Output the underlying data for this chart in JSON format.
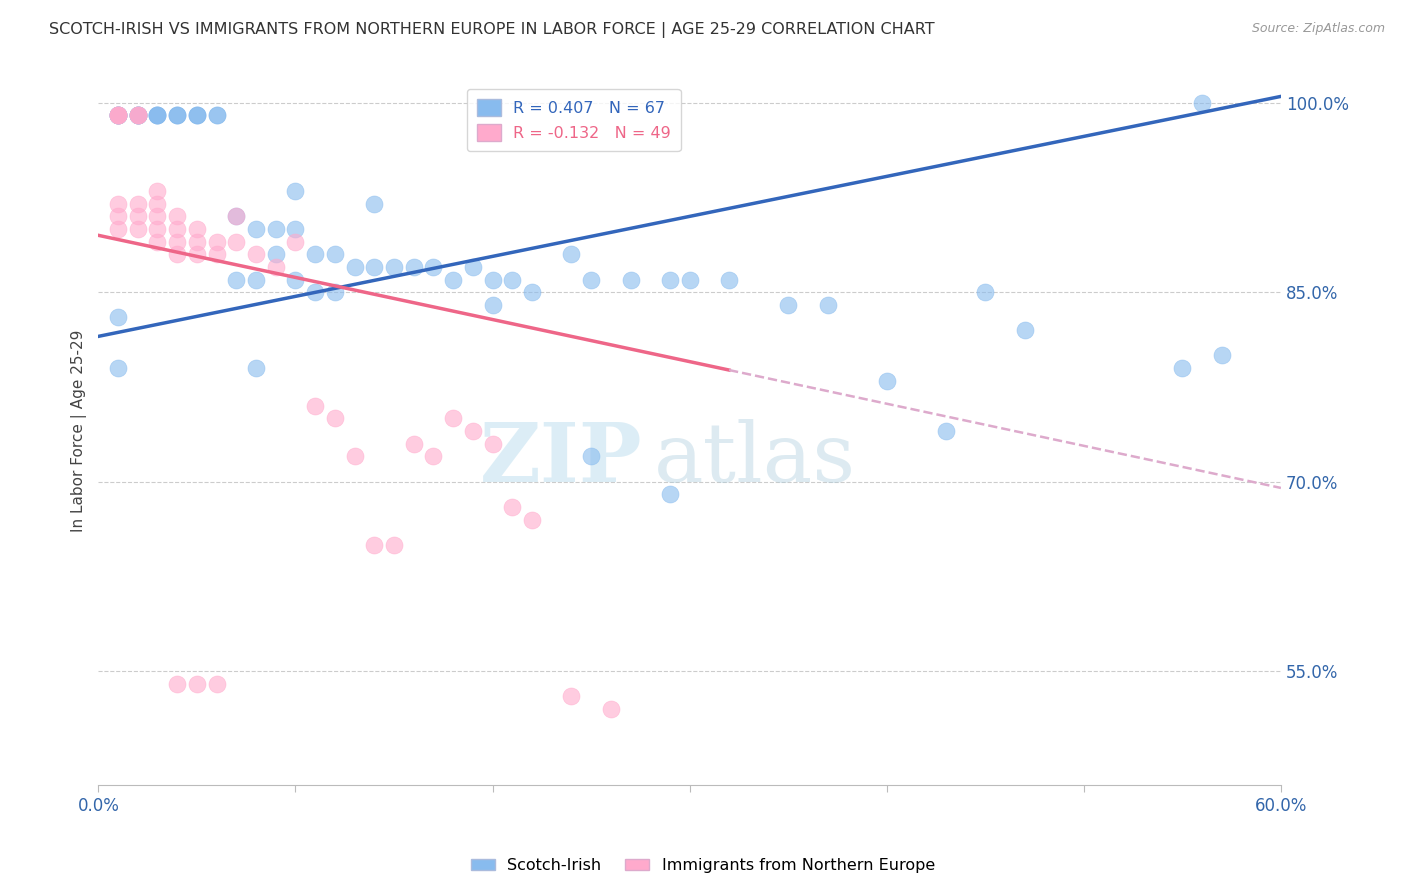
{
  "title": "SCOTCH-IRISH VS IMMIGRANTS FROM NORTHERN EUROPE IN LABOR FORCE | AGE 25-29 CORRELATION CHART",
  "source": "Source: ZipAtlas.com",
  "ylabel": "In Labor Force | Age 25-29",
  "xlim": [
    0.0,
    0.6
  ],
  "ylim": [
    0.46,
    1.02
  ],
  "xticks": [
    0.0,
    0.1,
    0.2,
    0.3,
    0.4,
    0.5,
    0.6
  ],
  "xticklabels": [
    "0.0%",
    "",
    "",
    "",
    "",
    "",
    "60.0%"
  ],
  "yticks_right": [
    0.55,
    0.7,
    0.85,
    1.0
  ],
  "ytick_right_labels": [
    "55.0%",
    "70.0%",
    "85.0%",
    "100.0%"
  ],
  "blue_color": "#88BBEE",
  "pink_color": "#FFAACC",
  "blue_line_color": "#3366BB",
  "pink_line_color": "#EE6688",
  "pink_dash_color": "#DDAACC",
  "blue_R": 0.407,
  "blue_N": 67,
  "pink_R": -0.132,
  "pink_N": 49,
  "legend_label_blue": "Scotch-Irish",
  "legend_label_pink": "Immigrants from Northern Europe",
  "watermark_zip": "ZIP",
  "watermark_atlas": "atlas",
  "blue_x": [
    0.01,
    0.01,
    0.01,
    0.01,
    0.01,
    0.02,
    0.02,
    0.02,
    0.02,
    0.02,
    0.03,
    0.03,
    0.03,
    0.03,
    0.04,
    0.04,
    0.04,
    0.05,
    0.05,
    0.05,
    0.06,
    0.06,
    0.07,
    0.07,
    0.08,
    0.08,
    0.09,
    0.09,
    0.1,
    0.1,
    0.11,
    0.11,
    0.12,
    0.12,
    0.13,
    0.14,
    0.15,
    0.16,
    0.17,
    0.18,
    0.19,
    0.2,
    0.21,
    0.22,
    0.24,
    0.25,
    0.27,
    0.29,
    0.3,
    0.32,
    0.35,
    0.37,
    0.4,
    0.43,
    0.45,
    0.47,
    0.55,
    0.57,
    0.08,
    0.1,
    0.14,
    0.2,
    0.25,
    0.29,
    0.56,
    0.01,
    0.01
  ],
  "blue_y": [
    0.99,
    0.99,
    0.99,
    0.99,
    0.99,
    0.99,
    0.99,
    0.99,
    0.99,
    0.99,
    0.99,
    0.99,
    0.99,
    0.99,
    0.99,
    0.99,
    0.99,
    0.99,
    0.99,
    0.99,
    0.99,
    0.99,
    0.91,
    0.86,
    0.9,
    0.86,
    0.88,
    0.9,
    0.86,
    0.9,
    0.85,
    0.88,
    0.85,
    0.88,
    0.87,
    0.87,
    0.87,
    0.87,
    0.87,
    0.86,
    0.87,
    0.86,
    0.86,
    0.85,
    0.88,
    0.86,
    0.86,
    0.86,
    0.86,
    0.86,
    0.84,
    0.84,
    0.78,
    0.74,
    0.85,
    0.82,
    0.79,
    0.8,
    0.79,
    0.93,
    0.92,
    0.84,
    0.72,
    0.69,
    1.0,
    0.83,
    0.79
  ],
  "pink_x": [
    0.01,
    0.01,
    0.01,
    0.01,
    0.01,
    0.01,
    0.01,
    0.02,
    0.02,
    0.02,
    0.02,
    0.02,
    0.02,
    0.03,
    0.03,
    0.03,
    0.03,
    0.03,
    0.04,
    0.04,
    0.04,
    0.04,
    0.05,
    0.05,
    0.05,
    0.06,
    0.06,
    0.07,
    0.07,
    0.08,
    0.09,
    0.1,
    0.11,
    0.12,
    0.13,
    0.14,
    0.15,
    0.16,
    0.17,
    0.18,
    0.19,
    0.2,
    0.21,
    0.22,
    0.24,
    0.26,
    0.04,
    0.05,
    0.06
  ],
  "pink_y": [
    0.99,
    0.99,
    0.99,
    0.99,
    0.92,
    0.91,
    0.9,
    0.99,
    0.99,
    0.99,
    0.92,
    0.91,
    0.9,
    0.93,
    0.92,
    0.91,
    0.9,
    0.89,
    0.91,
    0.9,
    0.89,
    0.88,
    0.9,
    0.89,
    0.88,
    0.89,
    0.88,
    0.91,
    0.89,
    0.88,
    0.87,
    0.89,
    0.76,
    0.75,
    0.72,
    0.65,
    0.65,
    0.73,
    0.72,
    0.75,
    0.74,
    0.73,
    0.68,
    0.67,
    0.53,
    0.52,
    0.54,
    0.54,
    0.54
  ]
}
